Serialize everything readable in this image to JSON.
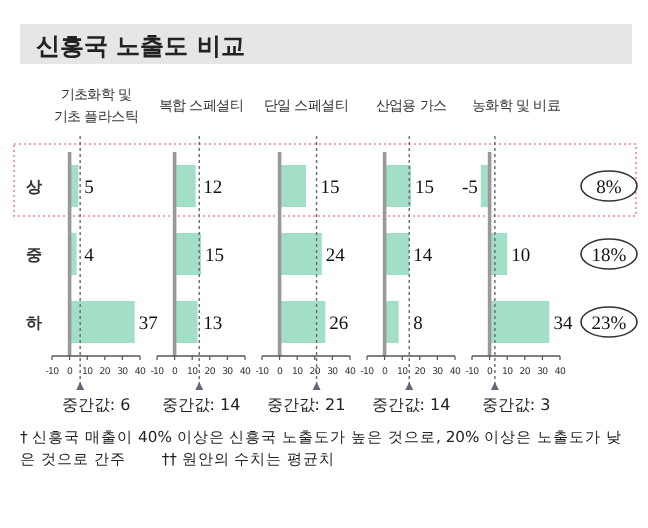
{
  "chart_data": [
    {
      "type": "bar",
      "orientation": "horizontal",
      "title": "신흥국 노출도 비교",
      "subtitle": "기초화학 및\n기초 플라스틱",
      "categories": [
        "상",
        "중",
        "하"
      ],
      "values": [
        5,
        4,
        37
      ],
      "color": "#a3dfc6",
      "xlim": [
        -10,
        40
      ],
      "xticks": [
        -10,
        0,
        10,
        20,
        30,
        40
      ],
      "data_labels": true,
      "ref_lines": [
        {
          "axis": "x",
          "value": 6,
          "label": "중간값: 6",
          "line_style": "dotted"
        }
      ],
      "annotations": [
        "† 신흥국 매출이 40% 이상은 신흥국 노출도가 높은 것으로, 20% 이상은 노출도가 낮은 것으로 간주",
        "†† 원안의 수치는 평균치"
      ]
    },
    {
      "type": "bar",
      "orientation": "horizontal",
      "subtitle": "복합 스페셜티",
      "categories": [
        null,
        null,
        null
      ],
      "values": [
        12,
        15,
        13
      ],
      "color": "#a3dfc6",
      "xlim": [
        -10,
        40
      ],
      "xticks": [
        -10,
        0,
        10,
        20,
        30,
        40
      ],
      "data_labels": true,
      "ref_lines": [
        {
          "axis": "x",
          "value": 14,
          "label": "중간값: 14",
          "line_style": "dotted"
        }
      ],
      "tick_labels": "x"
    },
    {
      "type": "bar",
      "orientation": "horizontal",
      "subtitle": "단일 스페셜티",
      "categories": [
        null,
        null,
        null
      ],
      "values": [
        15,
        24,
        26
      ],
      "color": "#a3dfc6",
      "xlim": [
        -10,
        40
      ],
      "xticks": [
        -10,
        0,
        10,
        20,
        30,
        40
      ],
      "data_labels": true,
      "ref_lines": [
        {
          "axis": "x",
          "value": 21,
          "label": "중간값: 21",
          "line_style": "dotted"
        }
      ],
      "tick_labels": "x"
    },
    {
      "type": "bar",
      "orientation": "horizontal",
      "subtitle": "산업용 가스",
      "categories": [
        null,
        null,
        null
      ],
      "values": [
        15,
        14,
        8
      ],
      "color": "#a3dfc6",
      "xlim": [
        -10,
        40
      ],
      "xticks": [
        -10,
        0,
        10,
        20,
        30,
        40
      ],
      "data_labels": true,
      "ref_lines": [
        {
          "axis": "x",
          "value": 14,
          "label": "중간값: 14",
          "line_style": "dotted"
        }
      ],
      "tick_labels": "x"
    },
    {
      "type": "bar",
      "orientation": "horizontal",
      "subtitle": "농화학 및 비료",
      "categories": [
        null,
        null,
        null
      ],
      "values": [
        -5,
        10,
        34
      ],
      "color": "#a3dfc6",
      "xlim": [
        -10,
        40
      ],
      "xticks": [
        -10,
        0,
        10,
        20,
        30,
        40
      ],
      "data_labels": true,
      "ref_lines": [
        {
          "axis": "x",
          "value": 3,
          "label": "중간값: 3",
          "line_style": "dotted"
        }
      ],
      "tick_labels": "x",
      "annotations": [
        "8%",
        "18%",
        "23%"
      ]
    }
  ]
}
